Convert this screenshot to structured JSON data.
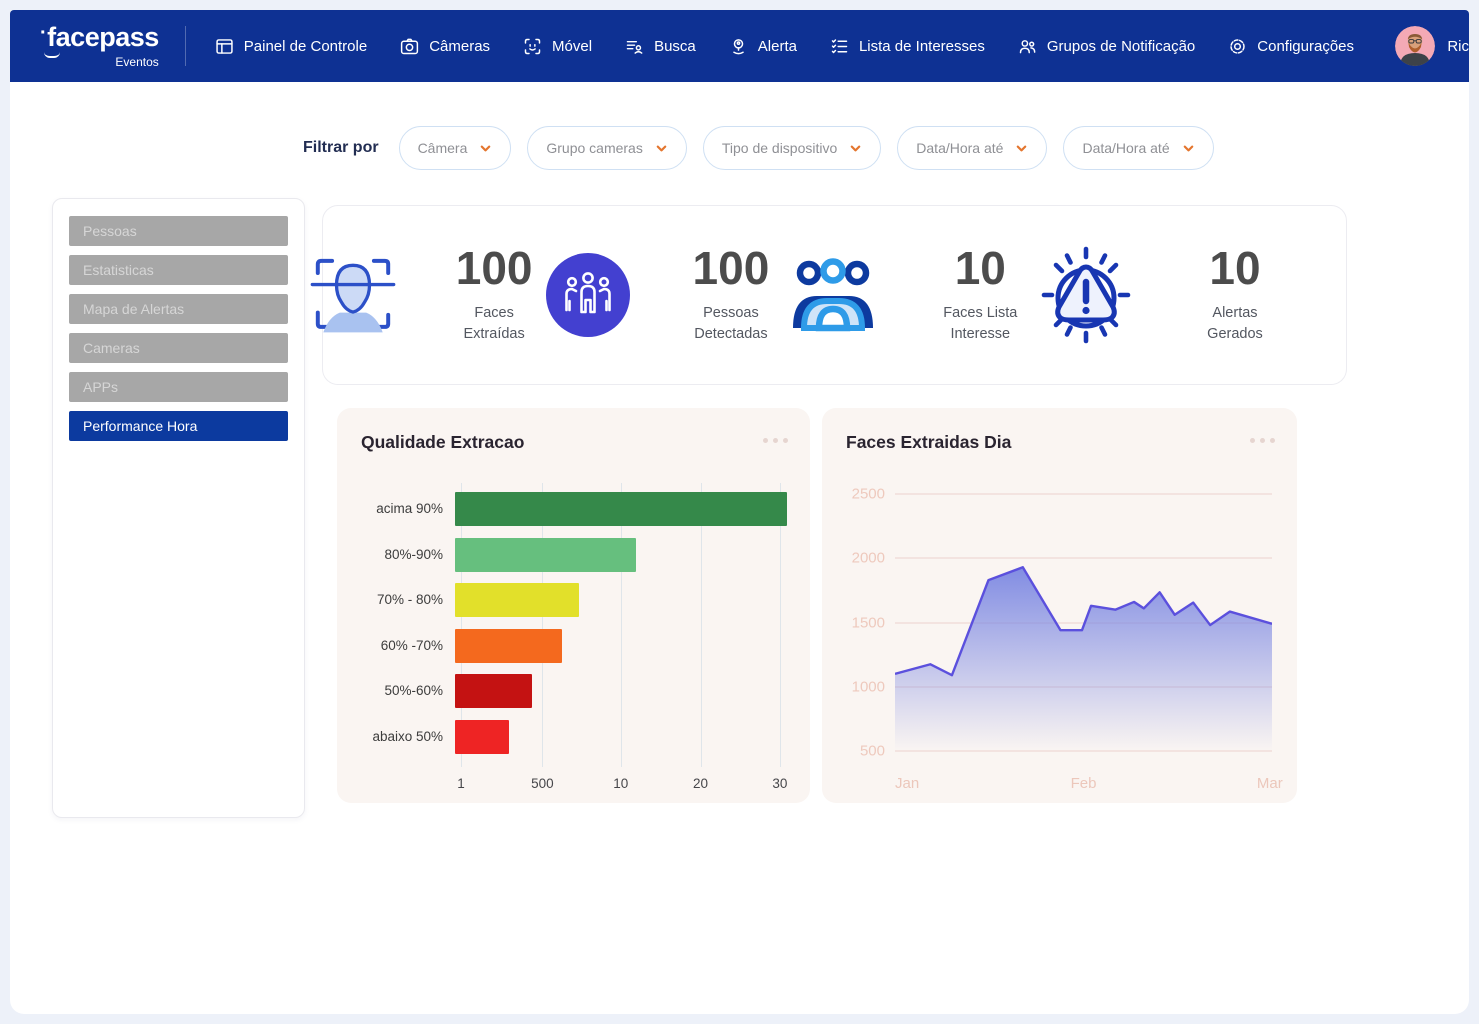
{
  "brand": {
    "name": "facepass",
    "sub": "Eventos",
    "user_name": "Ric"
  },
  "navbar": {
    "items": [
      {
        "label": "Painel de Controle",
        "icon": "panel-icon"
      },
      {
        "label": "Câmeras",
        "icon": "camera-icon"
      },
      {
        "label": "Móvel",
        "icon": "face-scan-icon"
      },
      {
        "label": "Busca",
        "icon": "search-list-icon"
      },
      {
        "label": "Alerta",
        "icon": "alert-pin-icon"
      },
      {
        "label": "Lista de Interesses",
        "icon": "checklist-icon"
      },
      {
        "label": "Grupos de Notificação",
        "icon": "people-icon"
      },
      {
        "label": "Configurações",
        "icon": "gear-icon"
      }
    ]
  },
  "filters": {
    "label": "Filtrar por",
    "dropdowns": [
      "Câmera",
      "Grupo cameras",
      "Tipo de dispositivo",
      "Data/Hora até",
      "Data/Hora até"
    ]
  },
  "sidebar": {
    "items": [
      {
        "label": "Pessoas",
        "active": false
      },
      {
        "label": "Estatisticas",
        "active": false
      },
      {
        "label": "Mapa de Alertas",
        "active": false
      },
      {
        "label": "Cameras",
        "active": false
      },
      {
        "label": "APPs",
        "active": false
      },
      {
        "label": "Performance Hora",
        "active": true
      }
    ]
  },
  "stats": [
    {
      "value": "100",
      "label": "Faces Extraídas",
      "icon": "face-extract-icon"
    },
    {
      "value": "100",
      "label": "Pessoas Detectadas",
      "icon": "people-circle-icon"
    },
    {
      "value": "10",
      "label": "Faces Lista Interesse",
      "icon": "interest-group-icon"
    },
    {
      "value": "10",
      "label": "Alertas Gerados",
      "icon": "alert-triangle-icon"
    }
  ],
  "colors": {
    "navbar_blue": "#0e3193",
    "active_blue": "#0c3a9f",
    "accent_orange": "#e4762f",
    "page_bg": "#edf1f9",
    "chart_card_bg": "#faf5f2"
  },
  "chart_data": [
    {
      "type": "bar",
      "orientation": "horizontal",
      "title": "Qualidade Extracao",
      "categories": [
        "acima 90%",
        "80%-90%",
        "70% - 80%",
        "60% -70%",
        "50%-60%",
        "abaixo 50%"
      ],
      "values_pct_of_axis": [
        99,
        54,
        37,
        32,
        23,
        16
      ],
      "bar_colors": [
        "#35894a",
        "#66bf7e",
        "#e2e02a",
        "#f4691e",
        "#c41212",
        "#ee2424"
      ],
      "x_tick_labels": [
        "1",
        "500",
        "10",
        "20",
        "30"
      ],
      "x_tick_pos_pct": [
        1.8,
        26.1,
        49.5,
        73.3,
        97
      ],
      "grid": true,
      "legend": "none"
    },
    {
      "type": "area",
      "title": "Faces Extraidas Dia",
      "x_labels": [
        "Jan",
        "Feb",
        "Mar"
      ],
      "y_ticks": [
        2500,
        2000,
        1500,
        1000,
        500
      ],
      "ylim": [
        500,
        2500
      ],
      "points": [
        {
          "x": 0,
          "y": 1100
        },
        {
          "x": 9.4,
          "y": 1175
        },
        {
          "x": 15.1,
          "y": 1090
        },
        {
          "x": 24.8,
          "y": 1830
        },
        {
          "x": 33.9,
          "y": 1930
        },
        {
          "x": 43.9,
          "y": 1440
        },
        {
          "x": 49.6,
          "y": 1440
        },
        {
          "x": 52,
          "y": 1630
        },
        {
          "x": 58.5,
          "y": 1600
        },
        {
          "x": 63.4,
          "y": 1660
        },
        {
          "x": 66,
          "y": 1610
        },
        {
          "x": 70.2,
          "y": 1735
        },
        {
          "x": 74.2,
          "y": 1560
        },
        {
          "x": 79.1,
          "y": 1655
        },
        {
          "x": 83.6,
          "y": 1480
        },
        {
          "x": 88.8,
          "y": 1585
        },
        {
          "x": 100,
          "y": 1490
        }
      ],
      "line_color": "#5b50dd",
      "fill_color": "#7b87e2",
      "grid": true,
      "legend": "none"
    }
  ]
}
